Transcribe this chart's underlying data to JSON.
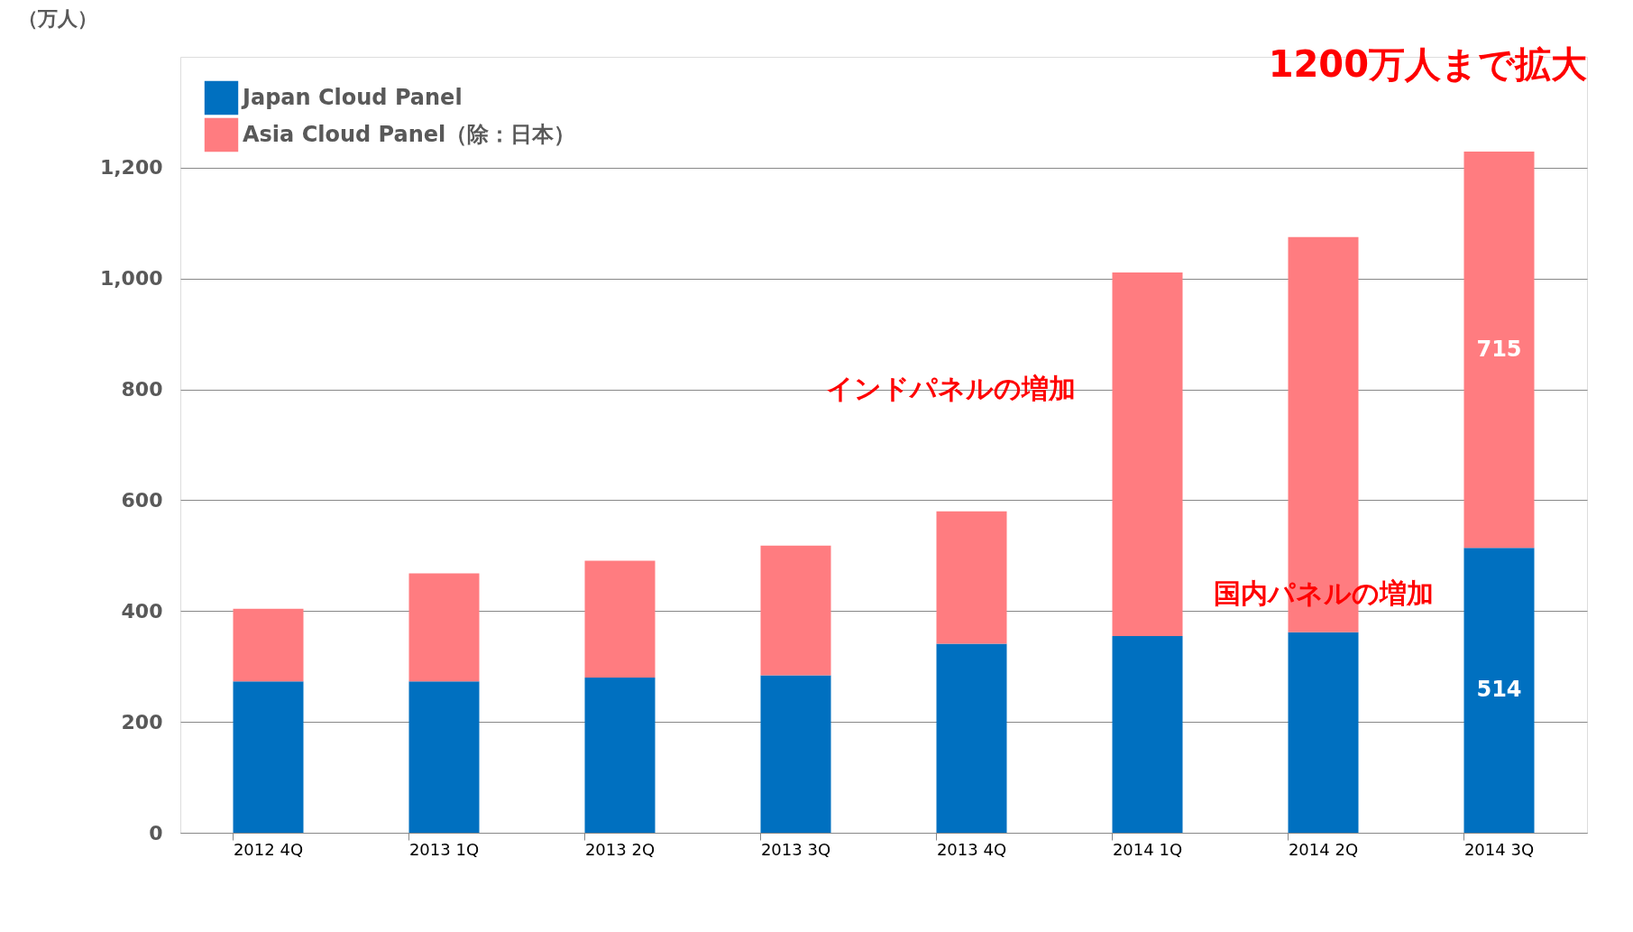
{
  "chart_data": {
    "type": "bar",
    "stacked": true,
    "ylabel": "（万人）",
    "categories": [
      "2012 4Q",
      "2013 1Q",
      "2013 2Q",
      "2013 3Q",
      "2013 4Q",
      "2014 1Q",
      "2014 2Q",
      "2014 3Q"
    ],
    "series": [
      {
        "name": "Japan Cloud Panel",
        "color": "#0070c0",
        "values": [
          273,
          273,
          280,
          284,
          341,
          355,
          362,
          514
        ],
        "value_labels": [
          null,
          null,
          null,
          null,
          null,
          null,
          null,
          "514"
        ]
      },
      {
        "name": "Asia Cloud Panel（除：日本）",
        "color": "#ff7c80",
        "values": [
          131,
          195,
          211,
          234,
          239,
          656,
          713,
          715
        ],
        "value_labels": [
          null,
          null,
          null,
          null,
          null,
          null,
          null,
          "715"
        ]
      }
    ],
    "ylim": [
      0,
      1400
    ],
    "yticks": [
      {
        "value": 0,
        "label": "0"
      },
      {
        "value": 200,
        "label": "200"
      },
      {
        "value": 400,
        "label": "400"
      },
      {
        "value": 600,
        "label": "600"
      },
      {
        "value": 800,
        "label": "800"
      },
      {
        "value": 1000,
        "label": "1,000"
      },
      {
        "value": 1200,
        "label": "1,200"
      }
    ],
    "grid": "y",
    "legend": "top left",
    "annotations": [
      "1200万人まで拡大",
      "インドパネルの増加",
      "国内パネルの増加"
    ]
  }
}
